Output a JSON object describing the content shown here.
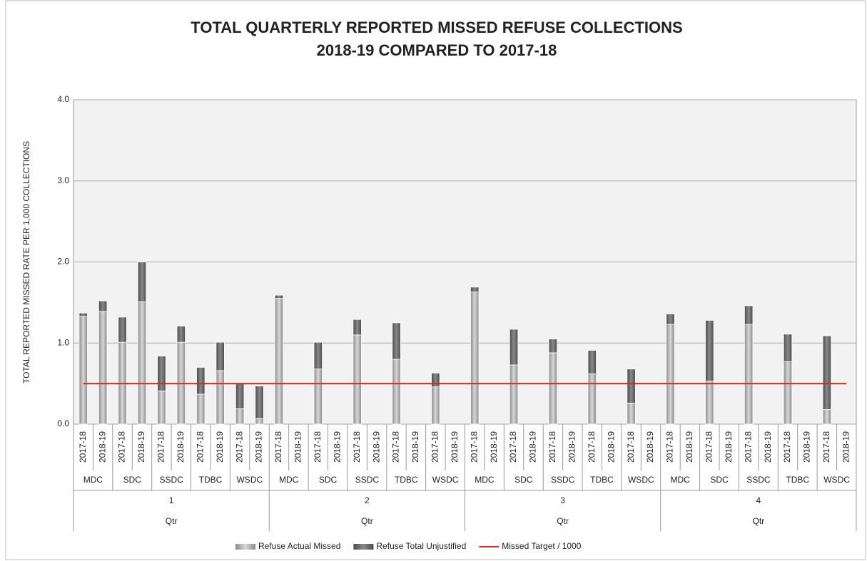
{
  "chart_data": {
    "type": "stacked_bar",
    "title": "TOTAL QUARTERLY REPORTED MISSED REFUSE COLLECTIONS",
    "subtitle": "2018-19 COMPARED TO 2017-18",
    "y_label": "TOTAL REPORTED MISSED RATE PER 1,000 COLLECTIONS",
    "categories": [
      "2017-18",
      "2018-19",
      "2017-18",
      "2018-19",
      "2017-18",
      "2018-19",
      "2017-18",
      "2018-19",
      "2017-18",
      "2018-19",
      "2017-18",
      "2018-19",
      "2017-18",
      "2018-19",
      "2017-18",
      "2018-19",
      "2017-18",
      "2018-19",
      "2017-18",
      "2018-19",
      "2017-18",
      "2018-19",
      "2017-18",
      "2018-19",
      "2017-18",
      "2018-19",
      "2017-18",
      "2018-19",
      "2017-18",
      "2018-19",
      "2017-18",
      "2018-19",
      "2017-18",
      "2018-19",
      "2017-18",
      "2018-19",
      "2017-18",
      "2018-19",
      "2017-18",
      "2018-19"
    ],
    "councils": [
      "MDC",
      "SDC",
      "SSDC",
      "TDBC",
      "WSDC",
      "MDC",
      "SDC",
      "SSDC",
      "TDBC",
      "WSDC",
      "MDC",
      "SDC",
      "SSDC",
      "TDBC",
      "WSDC",
      "MDC",
      "SDC",
      "SSDC",
      "TDBC",
      "WSDC"
    ],
    "quarters": [
      "1",
      "2",
      "3",
      "4"
    ],
    "quarter_labels": [
      "Qtr",
      "Qtr",
      "Qtr",
      "Qtr"
    ],
    "series": [
      {
        "name": "Refuse Actual Missed",
        "color": "#b4b4b4",
        "values": [
          1.33,
          1.39,
          1.01,
          1.51,
          0.41,
          1.01,
          0.37,
          0.66,
          0.19,
          0.07,
          1.55,
          null,
          0.68,
          null,
          1.1,
          null,
          0.8,
          null,
          0.46,
          null,
          1.63,
          null,
          0.73,
          null,
          0.88,
          null,
          0.62,
          null,
          0.26,
          null,
          1.23,
          null,
          0.53,
          null,
          1.23,
          null,
          0.77,
          null,
          0.18,
          null
        ]
      },
      {
        "name": "Refuse Total Unjustified",
        "color": "#6a6a6a",
        "values": [
          0.04,
          0.13,
          0.31,
          0.49,
          0.43,
          0.2,
          0.33,
          0.35,
          0.31,
          0.4,
          0.04,
          null,
          0.33,
          null,
          0.19,
          null,
          0.45,
          null,
          0.17,
          null,
          0.06,
          null,
          0.44,
          null,
          0.17,
          null,
          0.29,
          null,
          0.42,
          null,
          0.13,
          null,
          0.75,
          null,
          0.23,
          null,
          0.34,
          null,
          0.91,
          null
        ]
      },
      {
        "name": "Missed Target / 1000",
        "color": "#e8221b",
        "type": "line",
        "values": [
          0.5,
          0.5,
          0.5,
          0.5,
          0.5,
          0.5,
          0.5,
          0.5,
          0.5,
          0.5,
          0.5,
          0.5,
          0.5,
          0.5,
          0.5,
          0.5,
          0.5,
          0.5,
          0.5,
          0.5,
          0.5,
          0.5,
          0.5,
          0.5,
          0.5,
          0.5,
          0.5,
          0.5,
          0.5,
          0.5,
          0.5,
          0.5,
          0.5,
          0.5,
          0.5,
          0.5,
          0.5,
          0.5,
          0.5,
          0.5
        ]
      }
    ],
    "ylim": [
      0,
      4
    ],
    "yticks": [
      {
        "value": 0,
        "label": "0.0"
      },
      {
        "value": 1,
        "label": "1.0"
      },
      {
        "value": 2,
        "label": "2.0"
      },
      {
        "value": 3,
        "label": "3.0"
      },
      {
        "value": 4,
        "label": "4.0"
      }
    ],
    "grid": true,
    "legend": "bottom"
  }
}
